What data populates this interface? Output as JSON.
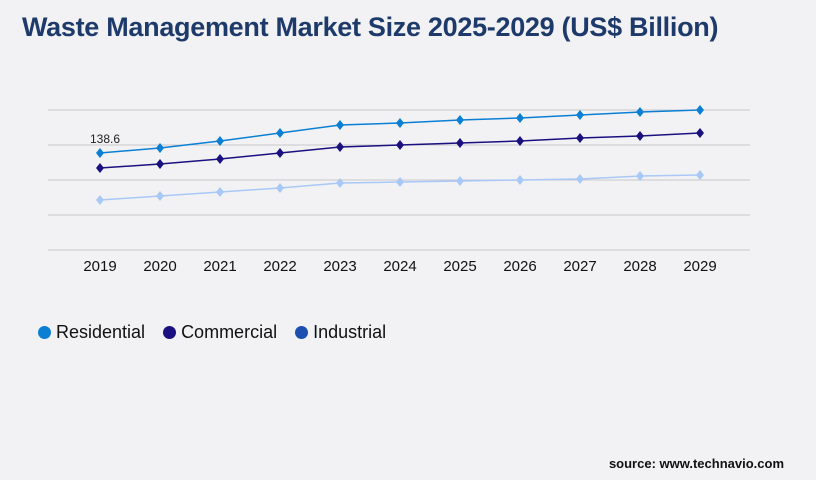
{
  "title": "Waste Management Market Size 2025-2029 (US$ Billion)",
  "source": "source: www.technavio.com",
  "chart_data": {
    "type": "line",
    "title": "Waste Management Market Size 2025-2029 (US$ Billion)",
    "categories": [
      "2019",
      "2020",
      "2021",
      "2022",
      "2023",
      "2024",
      "2025",
      "2026",
      "2027",
      "2028",
      "2029"
    ],
    "ylim": [
      0,
      200
    ],
    "grid": true,
    "legend": "bottom-left",
    "annotations": [
      {
        "series": "Residential",
        "category": "2019",
        "label": "138.6"
      }
    ],
    "series": [
      {
        "name": "Residential",
        "color": "#0a7fd4",
        "legend_color": "#0a7fd4",
        "values": [
          138.6,
          145.7,
          155.7,
          167.1,
          178.6,
          181.4,
          185.7,
          188.6,
          192.9,
          197.1,
          200
        ]
      },
      {
        "name": "Commercial",
        "color": "#1a1080",
        "legend_color": "#1a1080",
        "values": [
          117.1,
          122.9,
          130,
          138.6,
          147.1,
          150,
          152.9,
          155.7,
          160,
          162.9,
          167.1
        ]
      },
      {
        "name": "Industrial",
        "color": "#a8c8f8",
        "legend_color": "#1c4fb0",
        "values": [
          71.4,
          77.1,
          82.9,
          88.6,
          95.7,
          97.1,
          98.6,
          100,
          101.4,
          105.7,
          107.1
        ]
      }
    ]
  }
}
